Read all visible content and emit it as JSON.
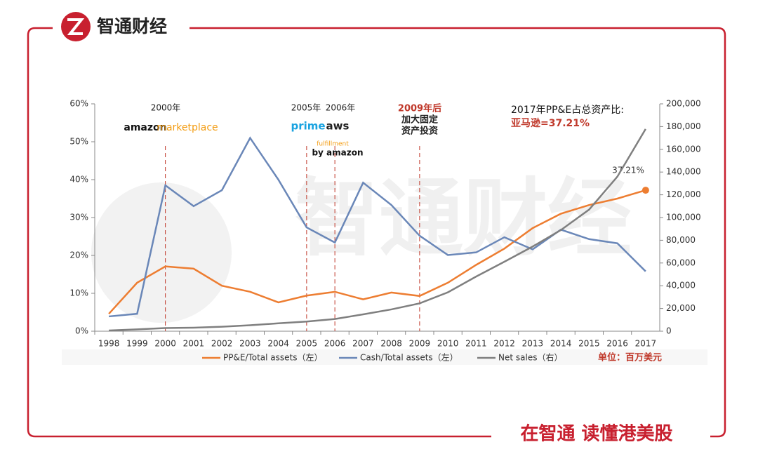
{
  "header": {
    "brand": "智通财经"
  },
  "footer": {
    "slogan": "在智通 读懂港美股"
  },
  "watermark": "智通财经",
  "chart_data": {
    "type": "line",
    "categories": [
      "1998",
      "1999",
      "2000",
      "2001",
      "2002",
      "2003",
      "2004",
      "2005",
      "2006",
      "2007",
      "2008",
      "2009",
      "2010",
      "2011",
      "2012",
      "2013",
      "2014",
      "2015",
      "2016",
      "2017"
    ],
    "series": [
      {
        "name": "PP&E/Total assets（左）",
        "color": "#ed7d31",
        "axis": "y",
        "values": [
          4.6,
          12.8,
          17.1,
          16.5,
          12,
          10.4,
          7.6,
          9.4,
          10.4,
          8.4,
          10.2,
          9.3,
          12.8,
          17.5,
          21.8,
          27.2,
          31,
          33.3,
          35,
          37.21
        ],
        "value_labels": [
          null,
          null,
          null,
          null,
          null,
          null,
          null,
          null,
          null,
          null,
          null,
          null,
          null,
          null,
          null,
          null,
          null,
          null,
          null,
          "37.21%"
        ]
      },
      {
        "name": "Cash/Total assets（左）",
        "color": "#6a87b8",
        "axis": "y",
        "values": [
          3.9,
          4.6,
          38.5,
          33,
          37.2,
          51,
          40,
          27.4,
          23.4,
          39.2,
          33.3,
          25.2,
          20.1,
          20.8,
          24.8,
          21.6,
          26.8,
          24.3,
          23.2,
          15.8
        ]
      },
      {
        "name": "Net sales（右）",
        "color": "#7f7f7f",
        "axis": "y2",
        "values": [
          610,
          1640,
          2762,
          3122,
          3933,
          5264,
          6921,
          8490,
          10711,
          14835,
          19166,
          24509,
          34204,
          48077,
          61093,
          74452,
          88988,
          107006,
          135987,
          177866
        ]
      }
    ],
    "ylim": [
      0,
      60
    ],
    "yticks": [
      {
        "value": 0,
        "label": "0%"
      },
      {
        "value": 10,
        "label": "10%"
      },
      {
        "value": 20,
        "label": "20%"
      },
      {
        "value": 30,
        "label": "30%"
      },
      {
        "value": 40,
        "label": "40%"
      },
      {
        "value": 50,
        "label": "50%"
      },
      {
        "value": 60,
        "label": "60%"
      }
    ],
    "y2lim": [
      0,
      200000
    ],
    "y2ticks": [
      0,
      {
        "value": 20000,
        "label": "20,000"
      },
      {
        "value": 40000,
        "label": "40,000"
      },
      {
        "value": 60000,
        "label": "60,000"
      },
      {
        "value": 80000,
        "label": "80,000"
      },
      {
        "value": 100000,
        "label": "100,000"
      },
      {
        "value": 120000,
        "label": "120,000"
      },
      {
        "value": 140000,
        "label": "140,000"
      },
      {
        "value": 160000,
        "label": "160,000"
      },
      {
        "value": 180000,
        "label": "180,000"
      },
      {
        "value": 200000,
        "label": "200,000"
      }
    ],
    "unit_note": "单位：百万美元",
    "annotations": [
      "2000年",
      "amazon",
      "marketplace",
      "2005年",
      "2006年",
      "prime",
      "aws",
      "fulfillment",
      "by amazon",
      "2009年后",
      "加大固定",
      "资产投资",
      "2017年PP&E占总资产比:",
      "亚马逊=37.21%"
    ]
  }
}
